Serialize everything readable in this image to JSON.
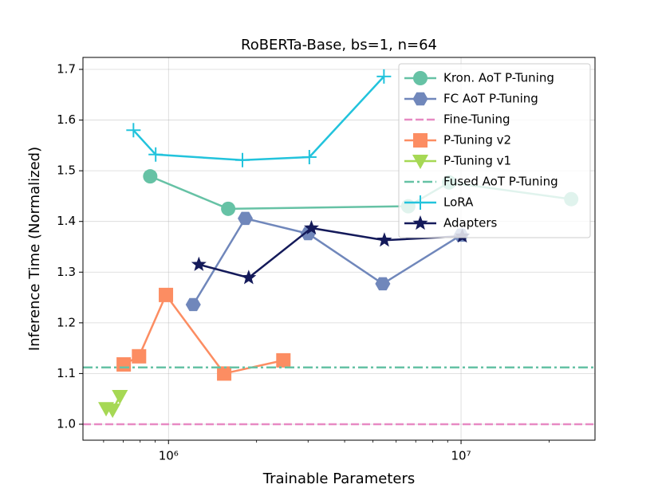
{
  "chart_data": {
    "type": "line",
    "title": "RoBERTa-Base, bs=1, n=64",
    "xlabel": "Trainable Parameters",
    "ylabel": "Inference Time (Normalized)",
    "xscale": "log",
    "xlim": [
      510000,
      28700000
    ],
    "ylim": [
      0.9685,
      1.7236
    ],
    "xticks": [
      {
        "value": 1000000,
        "label": "10⁶"
      },
      {
        "value": 10000000,
        "label": "10⁷"
      }
    ],
    "xminorticks": [
      600000,
      700000,
      800000,
      900000,
      2000000,
      3000000,
      4000000,
      5000000,
      6000000,
      7000000,
      8000000,
      9000000,
      20000000
    ],
    "yticks": [
      {
        "value": 1.0,
        "label": "1.0"
      },
      1.1,
      1.2,
      1.3,
      1.4,
      1.5,
      1.6,
      1.7
    ],
    "grid": true,
    "legend": "upper right",
    "series": [
      {
        "name": "Kron. AoT P-Tuning",
        "color": "#66c2a5",
        "marker": "circle",
        "linestyle": "solid",
        "x": [
          866000,
          1600000,
          6600000,
          9100000,
          23800000
        ],
        "values": [
          1.489,
          1.425,
          1.43,
          1.477,
          1.444
        ]
      },
      {
        "name": "FC AoT P-Tuning",
        "color": "#7087bb",
        "marker": "hexagon",
        "linestyle": "solid",
        "x": [
          1215000,
          1830000,
          3000000,
          5400000,
          10000000
        ],
        "values": [
          1.236,
          1.406,
          1.376,
          1.277,
          1.373
        ]
      },
      {
        "name": "Fine-Tuning",
        "color": "#e78ac3",
        "marker": "none",
        "linestyle": "dashed",
        "hline": 1.0
      },
      {
        "name": "P-Tuning v2",
        "color": "#fc8d62",
        "marker": "square",
        "linestyle": "solid",
        "x": [
          703000,
          793000,
          980000,
          1550000,
          2470000
        ],
        "values": [
          1.118,
          1.134,
          1.255,
          1.1,
          1.126
        ]
      },
      {
        "name": "P-Tuning v1",
        "color": "#a6d854",
        "marker": "triangle-down",
        "linestyle": "solid",
        "x": [
          612000,
          644000,
          682000
        ],
        "values": [
          1.031,
          1.028,
          1.055
        ]
      },
      {
        "name": "Fused AoT P-Tuning",
        "color": "#66c2a5",
        "marker": "none",
        "linestyle": "dashdot",
        "hline": 1.112
      },
      {
        "name": "LoRA",
        "color": "#22c3dc",
        "marker": "plus",
        "linestyle": "solid",
        "x": [
          759000,
          904000,
          1790000,
          3030000,
          5450000
        ],
        "values": [
          1.58,
          1.532,
          1.521,
          1.527,
          1.686
        ]
      },
      {
        "name": "Adapters",
        "color": "#141a5a",
        "marker": "star",
        "linestyle": "solid",
        "x": [
          1270000,
          1880000,
          3080000,
          5470000,
          10100000
        ],
        "values": [
          1.315,
          1.289,
          1.387,
          1.363,
          1.371
        ]
      }
    ]
  }
}
